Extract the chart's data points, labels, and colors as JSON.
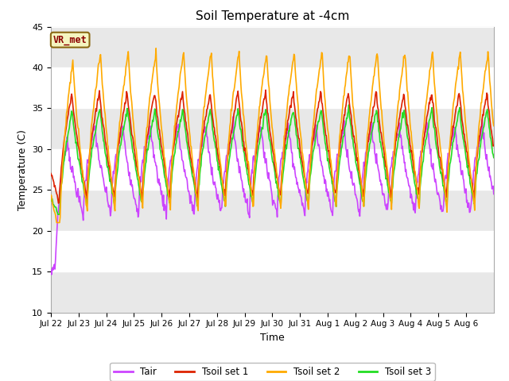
{
  "title": "Soil Temperature at -4cm",
  "xlabel": "Time",
  "ylabel": "Temperature (C)",
  "ylim": [
    10,
    45
  ],
  "n_days": 16,
  "colors": {
    "Tair": "#cc44ff",
    "Tsoil1": "#dd2200",
    "Tsoil2": "#ffaa00",
    "Tsoil3": "#22dd22"
  },
  "legend_labels": [
    "Tair",
    "Tsoil set 1",
    "Tsoil set 2",
    "Tsoil set 3"
  ],
  "xtick_labels": [
    "Jul 22",
    "Jul 23",
    "Jul 24",
    "Jul 25",
    "Jul 26",
    "Jul 27",
    "Jul 28",
    "Jul 29",
    "Jul 30",
    "Jul 31",
    "Aug 1",
    "Aug 2",
    "Aug 3",
    "Aug 4",
    "Aug 5",
    "Aug 6"
  ],
  "annotation_text": "VR_met",
  "annotation_color": "#8B0000",
  "annotation_bg": "#f5f5c0",
  "annotation_border": "#8B6914",
  "fig_bg": "#ffffff",
  "plot_bg": "#ffffff",
  "grid_color": "#d8d8d8",
  "band_color": "#e8e8e8"
}
